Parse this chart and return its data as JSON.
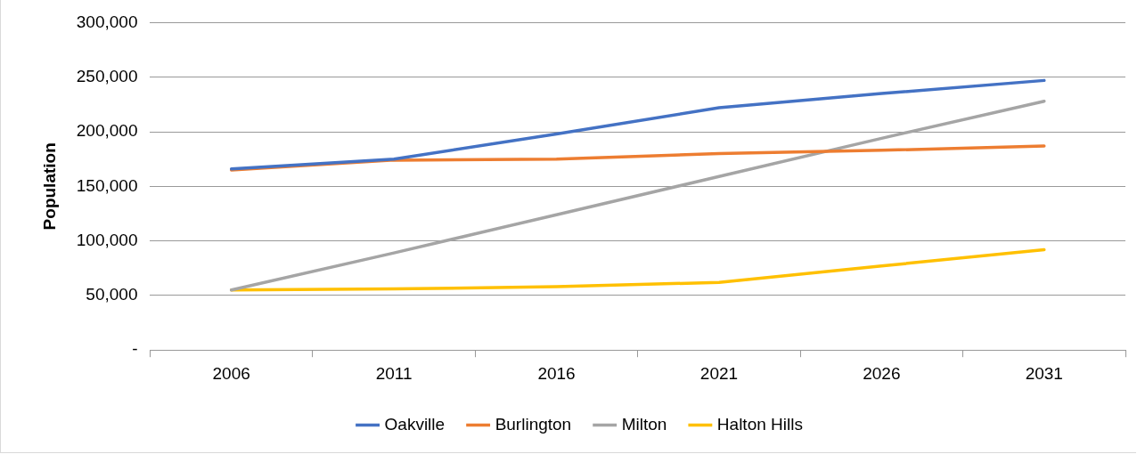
{
  "chart_data": {
    "type": "line",
    "ylabel": "Population",
    "categories": [
      "2006",
      "2011",
      "2016",
      "2021",
      "2026",
      "2031"
    ],
    "series": [
      {
        "name": "Oakville",
        "color": "#4472c4",
        "values": [
          166000,
          175000,
          198000,
          222000,
          235000,
          247000
        ]
      },
      {
        "name": "Burlington",
        "color": "#ed7d31",
        "values": [
          165000,
          174000,
          175000,
          180000,
          183000,
          187000
        ]
      },
      {
        "name": "Milton",
        "color": "#a5a5a5",
        "values": [
          55000,
          89000,
          124000,
          159000,
          194000,
          228000
        ]
      },
      {
        "name": "Halton Hills",
        "color": "#ffc000",
        "values": [
          55000,
          56000,
          58000,
          62000,
          77000,
          92000
        ]
      }
    ],
    "ylim": [
      0,
      300000
    ],
    "yticks": [
      {
        "value": 0,
        "label": "-"
      },
      {
        "value": 50000,
        "label": "50,000"
      },
      {
        "value": 100000,
        "label": "100,000"
      },
      {
        "value": 150000,
        "label": "150,000"
      },
      {
        "value": 200000,
        "label": "200,000"
      },
      {
        "value": 250000,
        "label": "250,000"
      },
      {
        "value": 300000,
        "label": "300,000"
      }
    ],
    "grid": "y",
    "legend": "bottom",
    "marker": "none",
    "line_style": "solid"
  }
}
